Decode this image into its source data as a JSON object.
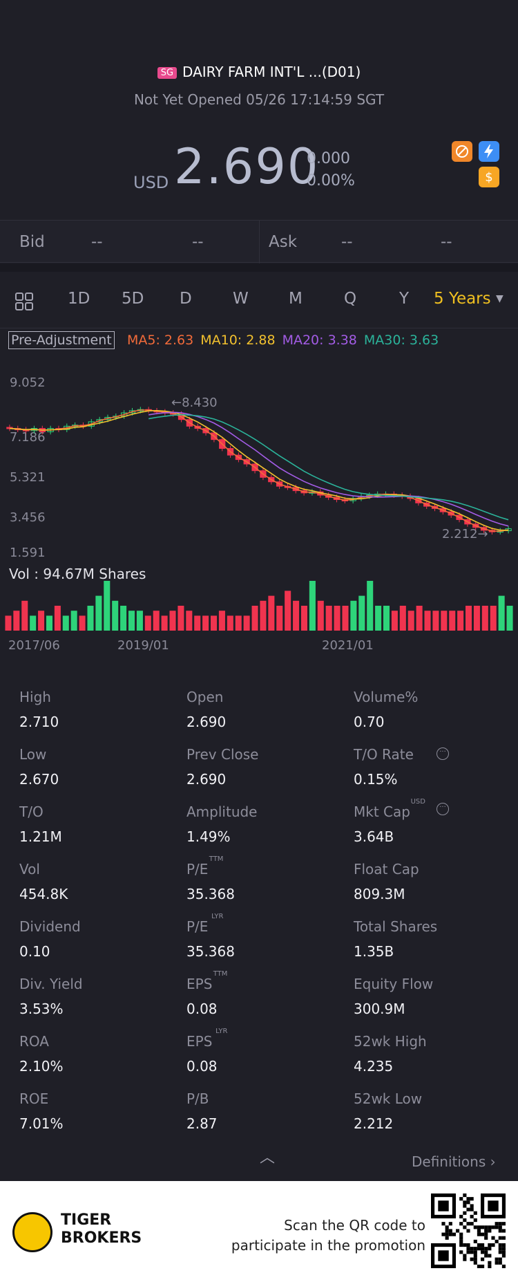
{
  "header": {
    "market_badge": "SG",
    "stock_name": "DAIRY FARM INT'L ...(D01)",
    "status": "Not Yet Opened 05/26 17:14:59 SGT",
    "currency": "USD",
    "price": "2.690",
    "change": "0.000",
    "change_pct": "0.00%"
  },
  "flags": [
    "no-short-sell-icon",
    "fast-icon",
    "dollar-icon"
  ],
  "quote": {
    "bid_label": "Bid",
    "bid_price": "--",
    "bid_size": "--",
    "ask_label": "Ask",
    "ask_price": "--",
    "ask_size": "--"
  },
  "tabs": {
    "items": [
      "1D",
      "5D",
      "D",
      "W",
      "M",
      "Q",
      "Y"
    ],
    "selected": "5 Years"
  },
  "indicators": {
    "adjustment": "Pre-Adjustment",
    "ma5": "MA5: 2.63",
    "ma10": "MA10: 2.88",
    "ma20": "MA20: 3.38",
    "ma30": "MA30: 3.63",
    "colors": {
      "ma5": "#f26b3a",
      "ma10": "#f2c12e",
      "ma20": "#a35ce6",
      "ma30": "#2bb39a",
      "up": "#2ed47a",
      "down": "#f0344f"
    }
  },
  "chart_data": {
    "type": "candlestick",
    "y_ticks": [
      "9.052",
      "7.186",
      "5.321",
      "3.456",
      "1.591"
    ],
    "x_ticks": [
      "2017/06",
      "2019/01",
      "2021/01"
    ],
    "high_marker": "8.430",
    "low_marker": "2.212",
    "ylim": [
      1.591,
      9.052
    ],
    "closes": [
      7.2,
      7.15,
      7.1,
      7.2,
      7.05,
      7.2,
      7.15,
      7.3,
      7.35,
      7.3,
      7.5,
      7.6,
      7.7,
      7.75,
      7.9,
      8.0,
      8.05,
      8.0,
      7.95,
      7.9,
      7.85,
      7.6,
      7.3,
      7.2,
      7.0,
      6.7,
      6.3,
      6.0,
      5.8,
      5.6,
      5.3,
      5.0,
      4.8,
      4.6,
      4.55,
      4.4,
      4.3,
      4.35,
      4.2,
      4.1,
      4.0,
      3.95,
      4.05,
      4.15,
      4.2,
      4.25,
      4.25,
      4.2,
      4.15,
      4.05,
      3.85,
      3.7,
      3.6,
      3.45,
      3.3,
      3.1,
      2.9,
      2.75,
      2.62,
      2.55,
      2.6,
      2.69
    ],
    "volume_label": "Vol",
    "volume": "94.67M Shares",
    "volumes": [
      3,
      4,
      6,
      3,
      4,
      3,
      5,
      3,
      4,
      3,
      5,
      7,
      10,
      6,
      5,
      4,
      4,
      3,
      4,
      3,
      4,
      5,
      4,
      3,
      3,
      3,
      4,
      3,
      3,
      3,
      5,
      6,
      7,
      5,
      8,
      6,
      5,
      10,
      6,
      5,
      5,
      5,
      6,
      7,
      10,
      5,
      5,
      4,
      5,
      4,
      5,
      4,
      4,
      4,
      4,
      4,
      5,
      5,
      5,
      5,
      7,
      5
    ]
  },
  "stats": [
    {
      "label": "High",
      "value": "2.710"
    },
    {
      "label": "Open",
      "value": "2.690"
    },
    {
      "label": "Volume%",
      "value": "0.70"
    },
    {
      "label": "Low",
      "value": "2.670"
    },
    {
      "label": "Prev Close",
      "value": "2.690"
    },
    {
      "label": "T/O Rate",
      "value": "0.15%"
    },
    {
      "label": "T/O",
      "value": "1.21M"
    },
    {
      "label": "Amplitude",
      "value": "1.49%"
    },
    {
      "label": "Mkt Cap",
      "value": "3.64B",
      "sup": "USD"
    },
    {
      "label": "Vol",
      "value": "454.8K"
    },
    {
      "label": "P/E",
      "value": "35.368",
      "sup": "TTM"
    },
    {
      "label": "Float Cap",
      "value": "809.3M"
    },
    {
      "label": "Dividend",
      "value": "0.10"
    },
    {
      "label": "P/E",
      "value": "35.368",
      "sup": "LYR"
    },
    {
      "label": "Total Shares",
      "value": "1.35B"
    },
    {
      "label": "Div. Yield",
      "value": "3.53%"
    },
    {
      "label": "EPS",
      "value": "0.08",
      "sup": "TTM"
    },
    {
      "label": "Equity Flow",
      "value": "300.9M"
    },
    {
      "label": "ROA",
      "value": "2.10%"
    },
    {
      "label": "EPS",
      "value": "0.08",
      "sup": "LYR"
    },
    {
      "label": "52wk High",
      "value": "4.235"
    },
    {
      "label": "ROE",
      "value": "7.01%"
    },
    {
      "label": "P/B",
      "value": "2.87"
    },
    {
      "label": "52wk Low",
      "value": "2.212"
    }
  ],
  "definitions_link": "Definitions",
  "footer": {
    "brand_line1": "TIGER",
    "brand_line2": "BROKERS",
    "promo_line1": "Scan the QR code to",
    "promo_line2": "participate in the promotion"
  }
}
